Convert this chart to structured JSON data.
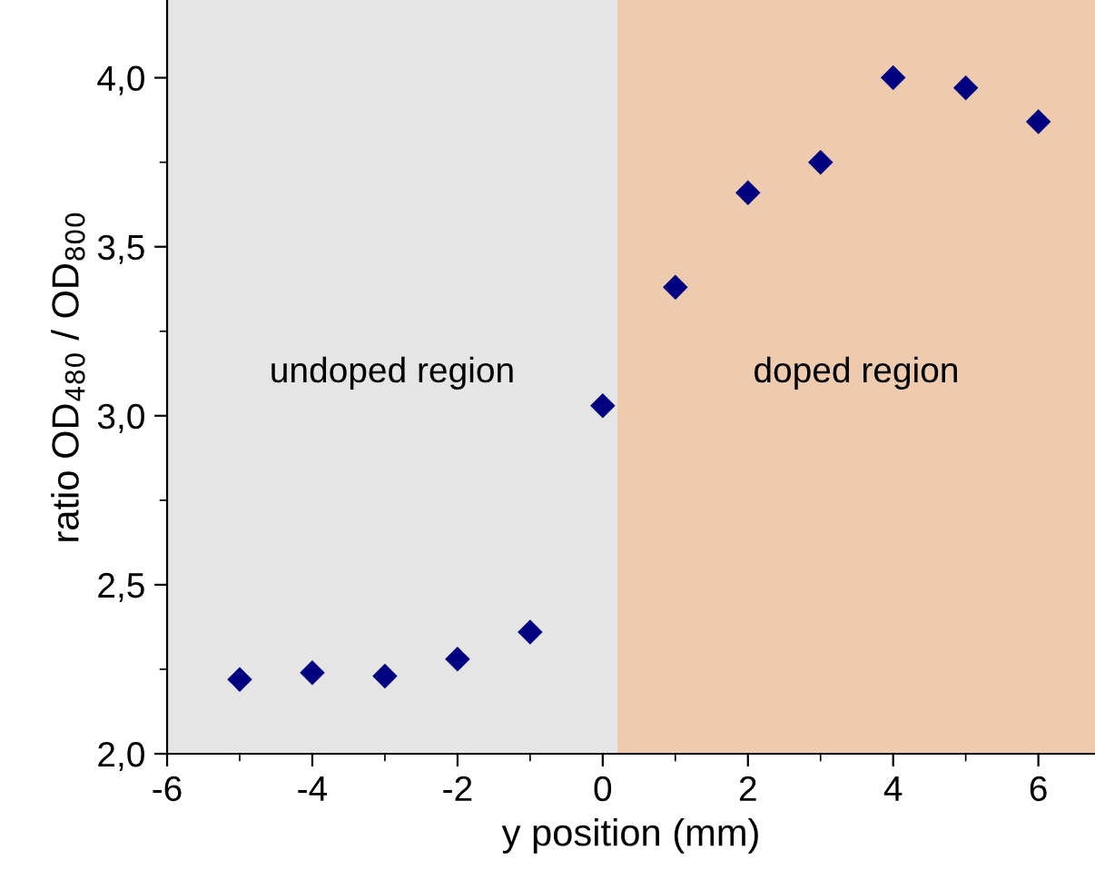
{
  "chart_data": {
    "type": "scatter",
    "xlabel": "y position (mm)",
    "ylabel": "ratio OD$_{480}$ / OD$_{800}$",
    "x": [
      -5,
      -4,
      -3,
      -2,
      -1,
      0,
      1,
      2,
      3,
      4,
      5,
      6
    ],
    "series": [
      {
        "color": "#000080",
        "values": [
          2.22,
          2.24,
          2.23,
          2.28,
          2.36,
          3.03,
          3.38,
          3.66,
          3.75,
          4.0,
          3.97,
          3.87
        ]
      }
    ],
    "marker": "diamond",
    "grid": false,
    "legend": false,
    "xlim": [
      -6,
      6.78
    ],
    "ylim": [
      2.0,
      4.23
    ],
    "xticks": [
      -6,
      -4,
      -2,
      0,
      2,
      4,
      6
    ],
    "yticks": [
      {
        "value": 2.0,
        "label": "2,0"
      },
      {
        "value": 2.5,
        "label": "2,5"
      },
      {
        "value": 3.0,
        "label": "3,0"
      },
      {
        "value": 3.5,
        "label": "3,5"
      },
      {
        "value": 4.0,
        "label": "4,0"
      }
    ],
    "bands": [
      {
        "axis": "x",
        "from": -6,
        "to": 0.2,
        "label": "undoped region",
        "color": "#e5e5e5"
      },
      {
        "axis": "x",
        "from": 0.2,
        "to": 6.78,
        "label": "doped region",
        "color": "#eecaae"
      }
    ]
  }
}
